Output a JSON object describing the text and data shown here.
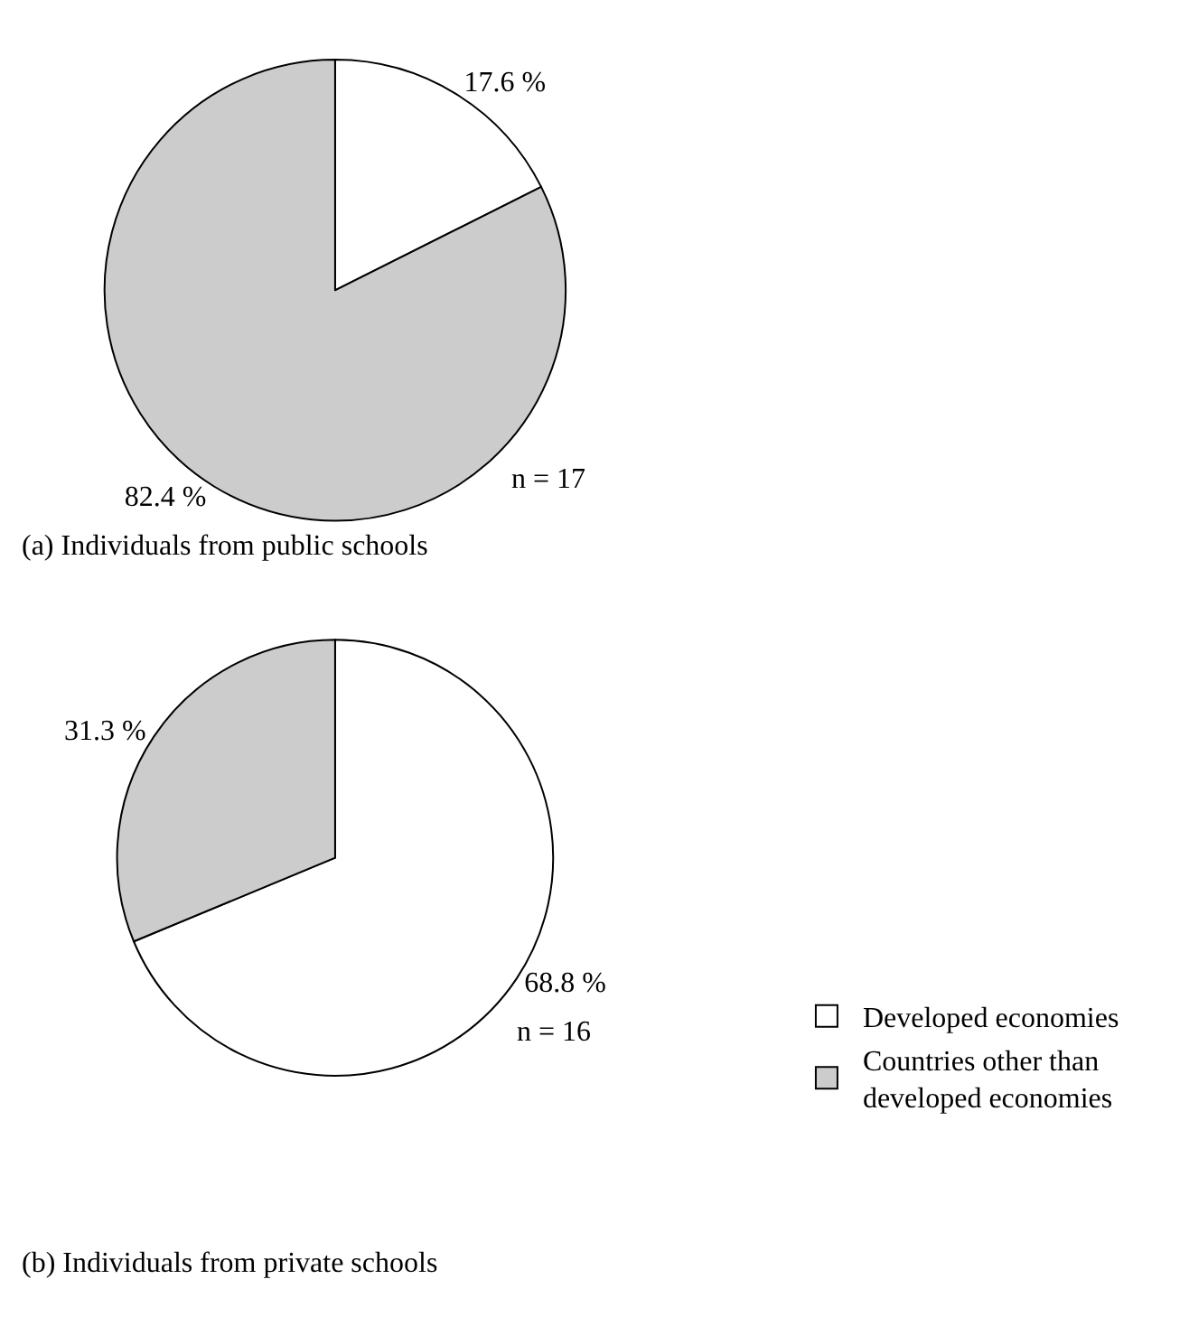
{
  "chart_data": [
    {
      "type": "pie",
      "title": "(a) Individuals from public schools",
      "categories": [
        null,
        null
      ],
      "values": [
        17.6,
        82.4
      ],
      "colors": [
        "#ffffff",
        "#cccccc"
      ],
      "value_labels": [
        "17.6 %",
        "82.4 %"
      ],
      "annotations": [
        "n = 17"
      ],
      "legend": false
    },
    {
      "type": "pie",
      "title": "(b) Individuals from private schools",
      "categories": [
        "Developed economies",
        "Countries other than developed economies"
      ],
      "values": [
        68.8,
        31.3
      ],
      "colors": [
        "#ffffff",
        "#cccccc"
      ],
      "value_labels": [
        "68.8 %",
        "31.3 %"
      ],
      "annotations": [
        "n = 16"
      ],
      "legend": "bottom right"
    }
  ]
}
